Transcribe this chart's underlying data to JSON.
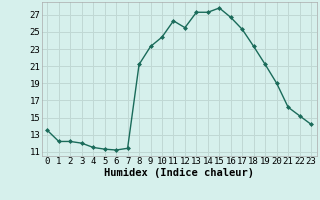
{
  "x": [
    0,
    1,
    2,
    3,
    4,
    5,
    6,
    7,
    8,
    9,
    10,
    11,
    12,
    13,
    14,
    15,
    16,
    17,
    18,
    19,
    20,
    21,
    22,
    23
  ],
  "y": [
    13.5,
    12.2,
    12.2,
    12.0,
    11.5,
    11.3,
    11.2,
    11.4,
    21.2,
    23.3,
    24.4,
    26.3,
    25.5,
    27.3,
    27.3,
    27.8,
    26.7,
    25.3,
    23.3,
    21.2,
    19.0,
    16.2,
    15.2,
    14.2
  ],
  "line_color": "#1a6b5a",
  "marker": "D",
  "marker_size": 2.0,
  "bg_color": "#d6f0ec",
  "grid_color": "#c0d8d4",
  "xlabel": "Humidex (Indice chaleur)",
  "ylabel_ticks": [
    11,
    13,
    15,
    17,
    19,
    21,
    23,
    25,
    27
  ],
  "ylim": [
    10.5,
    28.5
  ],
  "xlim": [
    -0.5,
    23.5
  ],
  "xlabel_fontsize": 7.5,
  "tick_fontsize": 6.5,
  "linewidth": 1.0
}
